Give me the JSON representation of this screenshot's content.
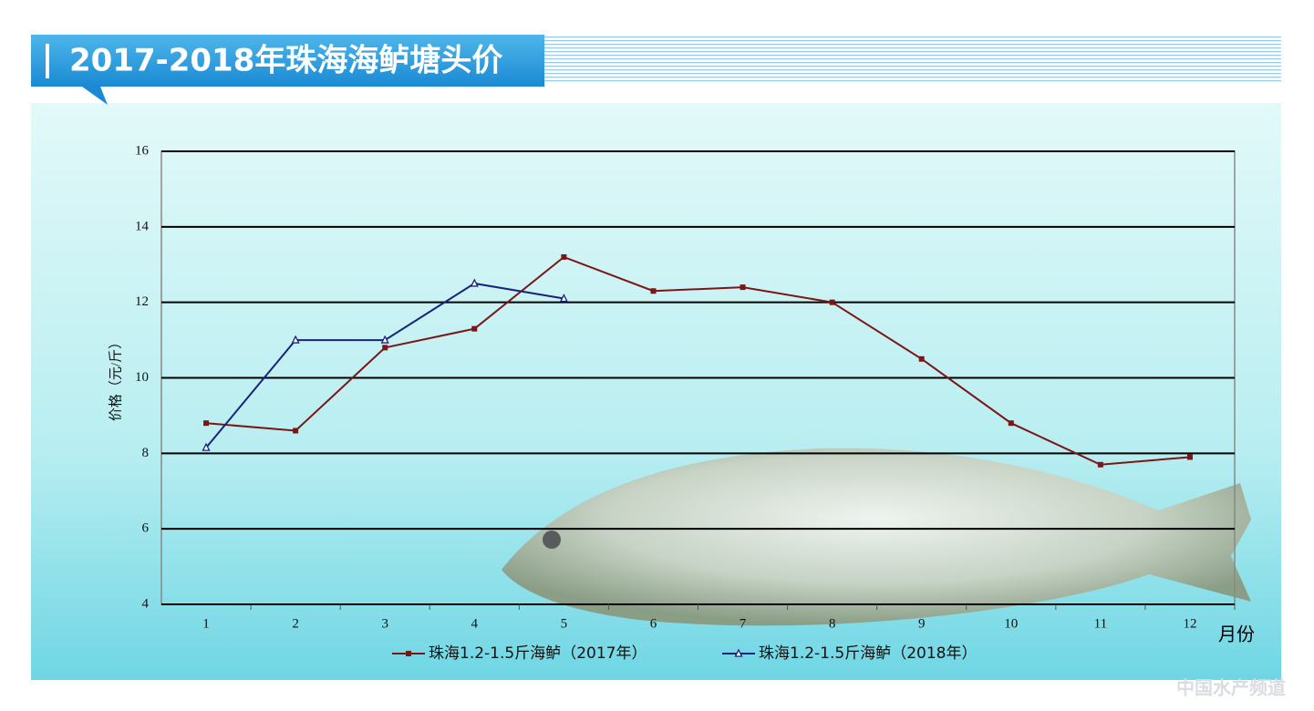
{
  "chart_data": {
    "type": "line",
    "title": "2017-2018年珠海海鲈塘头价",
    "y_label": "价格（元/斤）",
    "x_label": "月份",
    "watermark": "中国水产频道",
    "categories": [
      "1",
      "2",
      "3",
      "4",
      "5",
      "6",
      "7",
      "8",
      "9",
      "10",
      "11",
      "12"
    ],
    "series": [
      {
        "name": "珠海1.2-1.5斤海鲈（2017年）",
        "color": "#7a1616",
        "marker": "square",
        "values": [
          8.8,
          8.6,
          10.8,
          11.3,
          13.2,
          12.3,
          12.4,
          12.0,
          10.5,
          8.8,
          7.7,
          7.9
        ]
      },
      {
        "name": "珠海1.2-1.5斤海鲈（2018年）",
        "color": "#1a237a",
        "marker": "triangle",
        "values": [
          8.15,
          11.0,
          11.0,
          12.5,
          12.1,
          null,
          null,
          null,
          null,
          null,
          null,
          null
        ]
      }
    ],
    "ylim": [
      4,
      16
    ],
    "yticks": [
      4,
      6,
      8,
      10,
      12,
      14,
      16
    ],
    "grid": true
  }
}
